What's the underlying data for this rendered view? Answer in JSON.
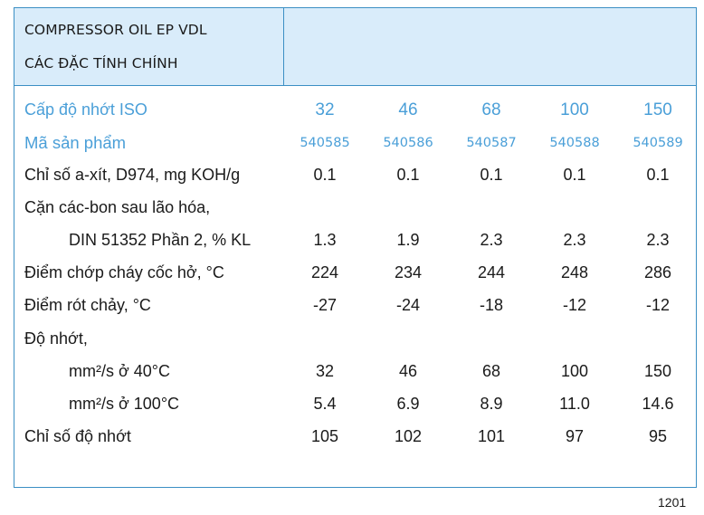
{
  "header": {
    "product": "COMPRESSOR OIL EP VDL",
    "subtitle": "CÁC ĐẶC TÍNH CHÍNH"
  },
  "rows": [
    {
      "label": "Cấp độ nhớt ISO",
      "values": [
        "32",
        "46",
        "68",
        "100",
        "150"
      ]
    },
    {
      "label": "Mã sản phẩm",
      "values": [
        "540585",
        "540586",
        "540587",
        "540588",
        "540589"
      ]
    },
    {
      "label": "Chỉ số a-xít, D974,  mg KOH/g",
      "values": [
        "0.1",
        "0.1",
        "0.1",
        "0.1",
        "0.1"
      ]
    },
    {
      "label": "Cặn các-bon sau lão hóa,"
    },
    {
      "label": "DIN 51352 Phần 2, % KL",
      "values": [
        "1.3",
        "1.9",
        "2.3",
        "2.3",
        "2.3"
      ]
    },
    {
      "label": "Điểm chớp cháy cốc hở, °C",
      "values": [
        "224",
        "234",
        "244",
        "248",
        "286"
      ]
    },
    {
      "label": "Điểm rót chảy, °C",
      "values": [
        "-27",
        "-24",
        "-18",
        "-12",
        "-12"
      ]
    },
    {
      "label": "Độ nhớt,"
    },
    {
      "label": "mm²/s ở 40°C",
      "values": [
        "32",
        "46",
        "68",
        "100",
        "150"
      ]
    },
    {
      "label": "mm²/s ở 100°C",
      "values": [
        "5.4",
        "6.9",
        "8.9",
        "11.0",
        "14.6"
      ]
    },
    {
      "label": "Chỉ số độ nhớt",
      "values": [
        "105",
        "102",
        "101",
        "97",
        "95"
      ]
    }
  ],
  "page_number": "1201",
  "colors": {
    "border": "#3b8fc4",
    "header_bg": "#d9ecfa",
    "accent_text": "#4a9fd8"
  }
}
